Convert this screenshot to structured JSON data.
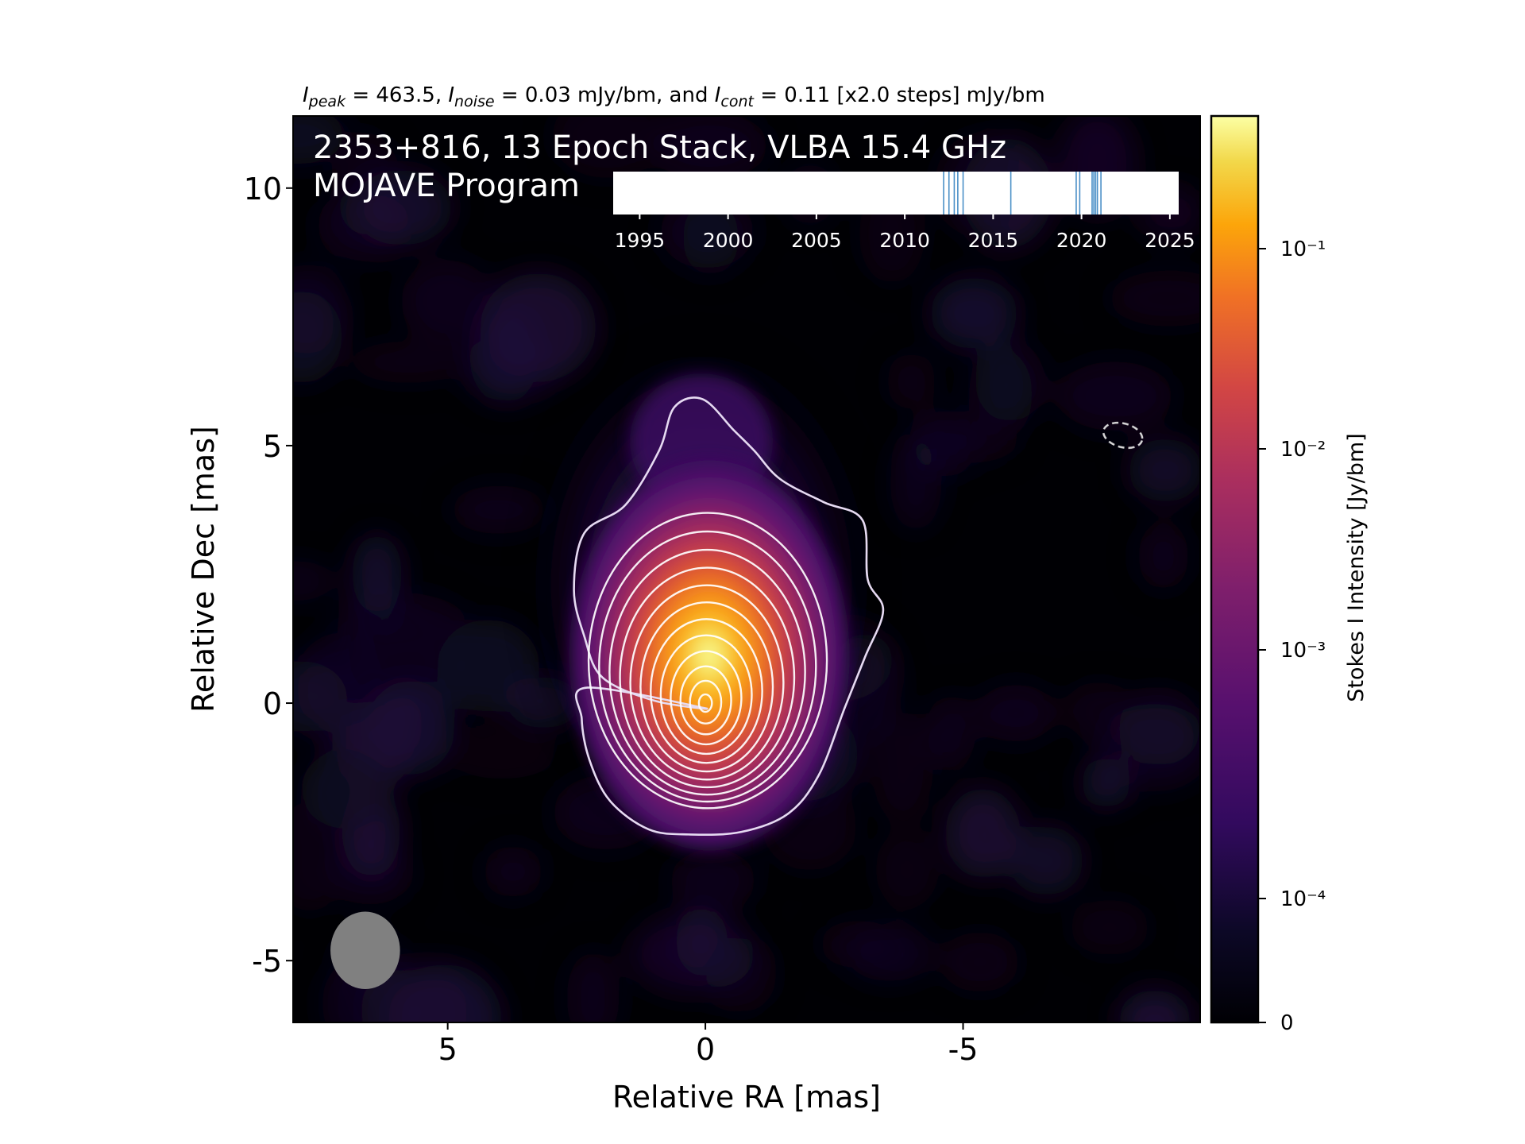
{
  "chart_data": {
    "type": "heatmap",
    "subtitle": {
      "parts": [
        {
          "text": "I",
          "style": "italic"
        },
        {
          "text": "peak",
          "style": "sub"
        },
        {
          "text": " = 463.5, ",
          "style": "normal"
        },
        {
          "text": "I",
          "style": "italic"
        },
        {
          "text": "noise",
          "style": "sub"
        },
        {
          "text": " = 0.03 mJy/bm, and ",
          "style": "normal"
        },
        {
          "text": "I",
          "style": "italic"
        },
        {
          "text": "cont",
          "style": "sub"
        },
        {
          "text": " = 0.11 [x2.0 steps] mJy/bm",
          "style": "normal"
        }
      ]
    },
    "title_line1": "2353+816, 13 Epoch Stack, VLBA 15.4 GHz",
    "title_line2": "MOJAVE Program",
    "xlabel": "Relative RA [mas]",
    "ylabel": "Relative Dec [mas]",
    "xlim": [
      8.0,
      -9.6
    ],
    "ylim": [
      -6.2,
      11.4
    ],
    "xticks": [
      5,
      0,
      -5
    ],
    "xtick_labels": [
      "5",
      "0",
      "-5"
    ],
    "yticks": [
      -5,
      0,
      5,
      10
    ],
    "ytick_labels": [
      "-5",
      "0",
      "5",
      "10"
    ],
    "colorbar": {
      "label": "Stokes I Intensity [Jy/bm]",
      "scale": "log",
      "colormap": "inferno",
      "ticks": [
        {
          "value": 0,
          "label": "0"
        },
        {
          "value": 0.0001,
          "label": "10⁻⁴"
        },
        {
          "value": 0.001,
          "label": "10⁻³"
        },
        {
          "value": 0.01,
          "label": "10⁻²"
        },
        {
          "value": 0.1,
          "label": "10⁻¹"
        }
      ]
    },
    "core": {
      "ra": 0.0,
      "dec": 0.0,
      "peak_jy": 0.4635
    },
    "contours_jy": [
      0.00011,
      0.00022,
      0.00044,
      0.00088,
      0.00176,
      0.00352,
      0.00704,
      0.01408,
      0.02816,
      0.05632,
      0.11264,
      0.22528,
      0.45056
    ],
    "negative_contour": {
      "ra": -8.1,
      "dec": 5.2
    },
    "beam": {
      "ra": 6.6,
      "dec": -4.8,
      "major_mas": 1.5,
      "minor_mas": 1.35,
      "color": "#808080"
    },
    "epoch_timeline": {
      "xlim": [
        1993.5,
        2025.5
      ],
      "ticks": [
        1995,
        2000,
        2005,
        2010,
        2015,
        2020,
        2025
      ],
      "tick_labels": [
        "1995",
        "2000",
        "2005",
        "2010",
        "2015",
        "2020",
        "2025"
      ],
      "epochs": [
        2012.2,
        2012.5,
        2012.8,
        2013.0,
        2013.3,
        2016.0,
        2019.7,
        2019.9,
        2020.6,
        2020.7,
        2020.8,
        2020.9,
        2021.1
      ],
      "line_color": "#4a8fc7"
    }
  }
}
